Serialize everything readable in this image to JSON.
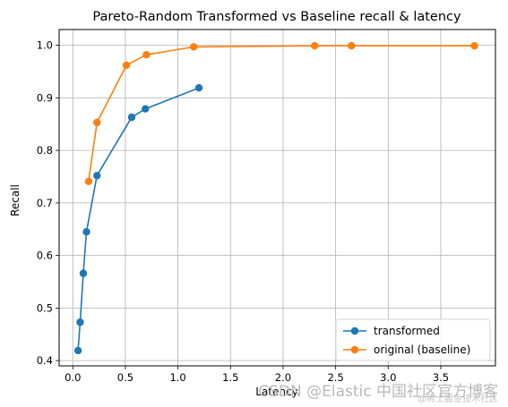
{
  "chart_data": {
    "type": "line",
    "title": "Pareto-Random Transformed vs Baseline recall & latency",
    "xlabel": "Latency",
    "ylabel": "Recall",
    "xlim": [
      -0.13,
      4.02
    ],
    "ylim": [
      0.39,
      1.03
    ],
    "xticks": [
      0.0,
      0.5,
      1.0,
      1.5,
      2.0,
      2.5,
      3.0,
      3.5
    ],
    "xtick_labels": [
      "0.0",
      "0.5",
      "1.0",
      "1.5",
      "2.0",
      "2.5",
      "3.0",
      "3.5"
    ],
    "yticks": [
      0.4,
      0.5,
      0.6,
      0.7,
      0.8,
      0.9,
      1.0
    ],
    "ytick_labels": [
      "0.4",
      "0.5",
      "0.6",
      "0.7",
      "0.8",
      "0.9",
      "1.0"
    ],
    "grid": true,
    "legend_position": "lower-right",
    "series": [
      {
        "name": "transformed",
        "color": "#1f77b4",
        "x": [
          0.05,
          0.07,
          0.1,
          0.13,
          0.23,
          0.56,
          0.69,
          1.2
        ],
        "y": [
          0.419,
          0.473,
          0.566,
          0.645,
          0.752,
          0.863,
          0.879,
          0.919
        ]
      },
      {
        "name": "original (baseline)",
        "color": "#ff7f0e",
        "x": [
          0.15,
          0.23,
          0.51,
          0.7,
          1.15,
          2.3,
          2.65,
          3.82
        ],
        "y": [
          0.741,
          0.853,
          0.962,
          0.982,
          0.997,
          0.999,
          0.999,
          0.999
        ]
      }
    ]
  },
  "watermark": {
    "main": "CSDN @Elastic 中国社区官方博客",
    "small": "@稀土掘金技术社区"
  }
}
